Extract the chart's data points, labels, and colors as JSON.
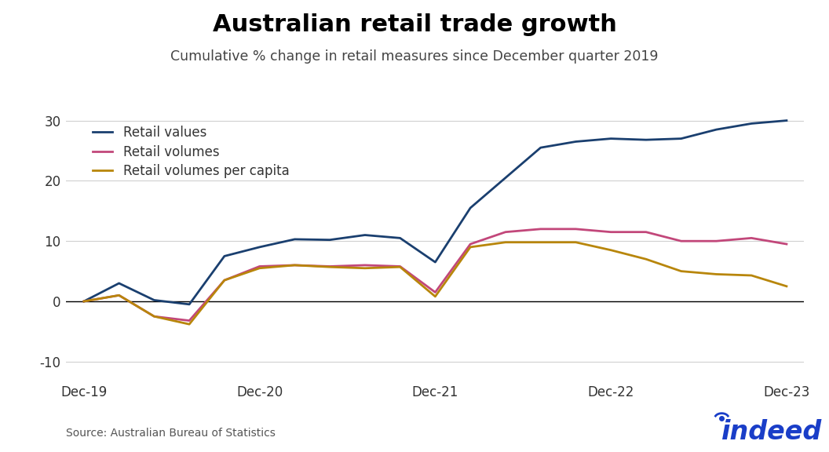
{
  "title": "Australian retail trade growth",
  "subtitle": "Cumulative % change in retail measures since December quarter 2019",
  "source": "Source: Australian Bureau of Statistics",
  "ylim": [
    -13,
    32
  ],
  "yticks": [
    -10,
    0,
    10,
    20,
    30
  ],
  "ytick_labels": [
    "-10",
    "0",
    "10",
    "20",
    "30"
  ],
  "legend_labels": [
    "Retail values",
    "Retail volumes",
    "Retail volumes per capita"
  ],
  "colors": {
    "retail_values": "#1a3f6f",
    "retail_volumes": "#c2477a",
    "retail_volumes_per_capita": "#b8860b"
  },
  "x_labels": [
    "Dec-19",
    "Dec-20",
    "Dec-21",
    "Dec-22",
    "Dec-23"
  ],
  "retail_values_y": [
    0,
    3.0,
    0.2,
    -0.5,
    7.5,
    9.0,
    10.3,
    10.2,
    11.0,
    10.5,
    6.5,
    15.5,
    20.5,
    25.5,
    26.5,
    27.0,
    26.8,
    27.0,
    28.5,
    29.5,
    30.0
  ],
  "retail_volumes_y": [
    0,
    1.0,
    -2.5,
    -3.2,
    3.5,
    5.8,
    6.0,
    5.8,
    6.0,
    5.8,
    1.5,
    9.5,
    11.5,
    12.0,
    12.0,
    11.5,
    11.5,
    10.0,
    10.0,
    10.5,
    9.5
  ],
  "retail_volumes_per_capita_y": [
    0,
    1.0,
    -2.5,
    -3.8,
    3.5,
    5.5,
    6.0,
    5.7,
    5.5,
    5.7,
    0.8,
    9.0,
    9.8,
    9.8,
    9.8,
    8.5,
    7.0,
    5.0,
    4.5,
    4.3,
    2.5
  ],
  "x_tick_positions": [
    0,
    5,
    10,
    15,
    20
  ],
  "background_color": "#ffffff",
  "grid_color": "#d0d0d0",
  "line_width": 2.0,
  "indeed_color": "#1a3ec8",
  "indeed_text": "indeed"
}
